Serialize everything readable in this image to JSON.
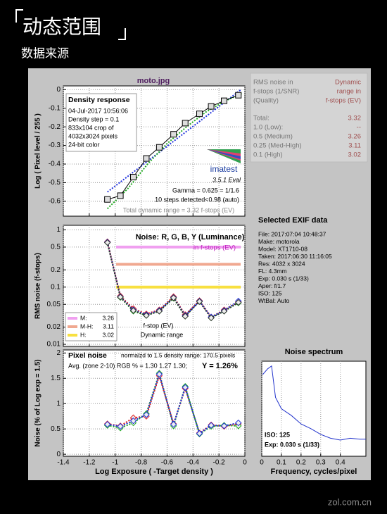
{
  "header": {
    "title": "动态范围",
    "subtitle": "数据来源"
  },
  "watermark": "zol.com.cn",
  "results": {
    "header_left": [
      "RMS noise in",
      "f-stops (1/SNR)",
      "(Quality)"
    ],
    "header_right": [
      "Dynamic",
      "range in",
      "f-stops (EV)"
    ],
    "rows": [
      [
        "Total:",
        "3.32"
      ],
      [
        "1.0  (Low):",
        "--"
      ],
      [
        "0.5  (Medium)",
        "3.26"
      ],
      [
        "0.25 (Med-High)",
        "3.11"
      ],
      [
        "0.1  (High)",
        "3.02"
      ]
    ]
  },
  "exif": {
    "title": "Selected EXIF data",
    "lines": [
      "File:  2017:07:04 10:48:37",
      "Make:  motorola",
      "Model: XT1710-08",
      "Taken: 2017:06:30 11:16:05",
      "Res:   4032 x 3024",
      "FL:   4.3mm",
      "Exp:   0.030 s  (1/33)",
      "Aper:  f/1.7",
      "ISO:   125",
      "WtBal: Auto"
    ]
  },
  "chart_data": [
    {
      "type": "line",
      "title": "moto.jpg",
      "subtitle": "Density response",
      "ylabel": "Log ( Pixel level / 255 )",
      "notes": [
        "04-Jul-2017 10:56:06",
        "Density step = 0.1",
        "833x104 crop of",
        "4032x3024 pixels",
        "24-bit color"
      ],
      "logo": "imatest",
      "version": "3.5.1  Eval",
      "annotations": [
        "Gamma = 0.625 = 1/1.6",
        "10 steps detected<0.98 (auto)"
      ],
      "footer": "Total dynamic range = 3.32 f-stops (EV)",
      "xlim": [
        -1.4,
        0
      ],
      "ylim": [
        -0.68,
        0.02
      ],
      "xticks": [
        -1.4,
        -1.2,
        -1,
        -0.8,
        -0.6,
        -0.4,
        -0.2,
        0
      ],
      "yticks": [
        0,
        -0.1,
        -0.2,
        -0.3,
        -0.4,
        -0.5,
        -0.6
      ],
      "grid": true,
      "series": [
        {
          "color": "#2233dd",
          "style": "dotted",
          "x": [
            -1.06,
            -0.03
          ],
          "values": [
            -0.55,
            0
          ]
        },
        {
          "color": "#22aa22",
          "style": "dotted",
          "x": [
            -1.06,
            -0.9,
            -0.75,
            -0.6,
            -0.45,
            -0.3,
            -0.15,
            -0.02
          ],
          "values": [
            -0.64,
            -0.53,
            -0.4,
            -0.29,
            -0.2,
            -0.12,
            -0.06,
            -0.02
          ]
        },
        {
          "color": "#000000",
          "marker": "square",
          "x": [
            -1.06,
            -0.96,
            -0.86,
            -0.76,
            -0.66,
            -0.55,
            -0.46,
            -0.35,
            -0.26,
            -0.16,
            -0.05
          ],
          "values": [
            -0.59,
            -0.57,
            -0.47,
            -0.37,
            -0.31,
            -0.24,
            -0.18,
            -0.13,
            -0.09,
            -0.06,
            -0.03
          ]
        }
      ]
    },
    {
      "type": "line",
      "title": "Noise: R, G, B, Y (Luminance)",
      "subtitle": "in f-stops (EV)",
      "ylabel": "RMS noise (f-stops)",
      "notes": [
        "f-stop (EV)",
        "Dynamic range"
      ],
      "xlim": [
        -1.4,
        0
      ],
      "ylim": [
        0.0092,
        1.2
      ],
      "log_scale": true,
      "xticks": [
        -1.4,
        -1.2,
        -1,
        -0.8,
        -0.6,
        -0.4,
        -0.2,
        0
      ],
      "yticks": [
        1,
        0.5,
        0.2,
        0.1,
        0.05,
        0.02,
        0.01
      ],
      "grid": true,
      "bands": [
        {
          "label": "M:",
          "value": 3.26,
          "level": 0.5,
          "color": "#f0a0f0"
        },
        {
          "label": "M-H:",
          "value": 3.11,
          "level": 0.25,
          "color": "#f0a890"
        },
        {
          "label": "H:",
          "value": 3.02,
          "level": 0.1,
          "color": "#f8e040"
        }
      ],
      "series": [
        {
          "color": "#dd2222",
          "style": "dotted",
          "marker": "diamond",
          "x": [
            -1.06,
            -0.96,
            -0.86,
            -0.76,
            -0.66,
            -0.55,
            -0.46,
            -0.35,
            -0.26,
            -0.16,
            -0.05
          ],
          "values": [
            0.62,
            0.07,
            0.042,
            0.034,
            0.04,
            0.068,
            0.033,
            0.058,
            0.03,
            0.04,
            0.055
          ]
        },
        {
          "color": "#22aa22",
          "style": "dotted",
          "marker": "diamond",
          "x": [
            -1.06,
            -0.96,
            -0.86,
            -0.76,
            -0.66,
            -0.55,
            -0.46,
            -0.35,
            -0.26,
            -0.16,
            -0.05
          ],
          "values": [
            0.6,
            0.066,
            0.038,
            0.032,
            0.038,
            0.064,
            0.031,
            0.056,
            0.029,
            0.038,
            0.053
          ]
        },
        {
          "color": "#2233dd",
          "style": "dotted",
          "marker": "diamond",
          "x": [
            -1.06,
            -0.96,
            -0.86,
            -0.76,
            -0.66,
            -0.55,
            -0.46,
            -0.35,
            -0.26,
            -0.16,
            -0.05
          ],
          "values": [
            0.61,
            0.068,
            0.04,
            0.033,
            0.039,
            0.066,
            0.032,
            0.057,
            0.03,
            0.039,
            0.057
          ]
        },
        {
          "color": "#333333",
          "style": "dotted",
          "marker": "diamond",
          "x": [
            -1.06,
            -0.96,
            -0.86,
            -0.76,
            -0.66,
            -0.55,
            -0.46,
            -0.35,
            -0.26,
            -0.16,
            -0.05
          ],
          "values": [
            0.6,
            0.067,
            0.039,
            0.032,
            0.038,
            0.065,
            0.031,
            0.056,
            0.029,
            0.038,
            0.054
          ]
        }
      ]
    },
    {
      "type": "line",
      "title": "Pixel noise",
      "subtitle": "normalzd to 1.5 density range: 170.5 pixels",
      "notes": [
        "Avg. (zone 2-10) RGB % = 1.30  1.27  1.30;",
        "Y = 1.26%"
      ],
      "ylabel": "Noise (% of Log exp = 1.5)",
      "xlabel": "Log Exposure ( -Target density )",
      "xlim": [
        -1.4,
        0
      ],
      "ylim": [
        -0.04,
        2.06
      ],
      "xticks": [
        -1.4,
        -1.2,
        -1,
        -0.8,
        -0.6,
        -0.4,
        -0.2,
        0
      ],
      "yticks": [
        0,
        0.5,
        1,
        1.5,
        2
      ],
      "grid": true,
      "series": [
        {
          "color": "#dd2222",
          "style": "dotted",
          "marker": "diamond",
          "x": [
            -1.06,
            -0.96,
            -0.86,
            -0.76,
            -0.66,
            -0.55,
            -0.46,
            -0.35,
            -0.26,
            -0.16,
            -0.05
          ],
          "values": [
            0.6,
            0.56,
            0.72,
            0.75,
            1.55,
            0.6,
            1.3,
            0.42,
            0.58,
            0.55,
            0.6
          ]
        },
        {
          "color": "#22aa22",
          "style": "dotted",
          "marker": "diamond",
          "x": [
            -1.06,
            -0.96,
            -0.86,
            -0.76,
            -0.66,
            -0.55,
            -0.46,
            -0.35,
            -0.26,
            -0.16,
            -0.05
          ],
          "values": [
            0.57,
            0.52,
            0.62,
            0.8,
            1.6,
            0.56,
            1.34,
            0.4,
            0.55,
            0.57,
            0.56
          ]
        },
        {
          "color": "#2233dd",
          "style": "dotted",
          "marker": "diamond",
          "x": [
            -1.06,
            -0.96,
            -0.86,
            -0.76,
            -0.66,
            -0.55,
            -0.46,
            -0.35,
            -0.26,
            -0.16,
            -0.05
          ],
          "values": [
            0.59,
            0.55,
            0.66,
            0.78,
            1.58,
            0.59,
            1.32,
            0.41,
            0.57,
            0.56,
            0.62
          ]
        }
      ]
    },
    {
      "type": "line",
      "title": "Noise spectrum",
      "xlabel": "Frequency, cycles/pixel",
      "notes": [
        "ISO:  125",
        "Exp:  0.030 s  (1/33)"
      ],
      "xlim": [
        0,
        0.53
      ],
      "ylim": [
        0,
        1
      ],
      "xticks": [
        0,
        0.1,
        0.2,
        0.3,
        0.4
      ],
      "grid": true,
      "series": [
        {
          "color": "#2233cc",
          "x": [
            0.005,
            0.03,
            0.05,
            0.07,
            0.1,
            0.15,
            0.2,
            0.25,
            0.3,
            0.35,
            0.4,
            0.45,
            0.5,
            0.53
          ],
          "values": [
            0.86,
            0.92,
            0.95,
            0.62,
            0.5,
            0.43,
            0.34,
            0.29,
            0.23,
            0.19,
            0.17,
            0.19,
            0.18,
            0.18
          ]
        }
      ]
    }
  ]
}
